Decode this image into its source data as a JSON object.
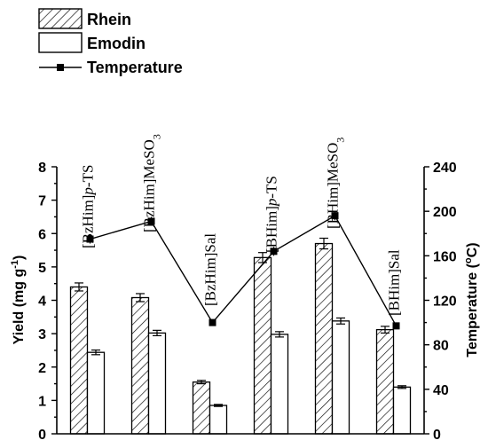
{
  "chart_data": {
    "type": "bar",
    "categories": [
      "[BzHim]p-TS",
      "[BzHim]MeSO3",
      "[BzHim]Sal",
      "[BHim]p-TS",
      "[BHim]MeSO3",
      "[BHim]Sal"
    ],
    "category_labels": [
      {
        "pre": "[BzHim]",
        "ital": "p",
        "post": "-TS",
        "sub": ""
      },
      {
        "pre": "[BzHim]MeSO",
        "ital": "",
        "post": "",
        "sub": "3"
      },
      {
        "pre": "[BzHim]Sal",
        "ital": "",
        "post": "",
        "sub": ""
      },
      {
        "pre": "[BHim]",
        "ital": "p",
        "post": "-TS",
        "sub": ""
      },
      {
        "pre": "[BHim]MeSO",
        "ital": "",
        "post": "",
        "sub": "3"
      },
      {
        "pre": "[BHim]Sal",
        "ital": "",
        "post": "",
        "sub": ""
      }
    ],
    "series": [
      {
        "name": "Rhein",
        "kind": "bar",
        "pattern": "hatch",
        "values": [
          4.4,
          4.08,
          1.55,
          5.28,
          5.7,
          3.12
        ],
        "errors": [
          0.12,
          0.12,
          0.05,
          0.15,
          0.16,
          0.1
        ]
      },
      {
        "name": "Emodin",
        "kind": "bar",
        "pattern": "none",
        "values": [
          2.44,
          3.02,
          0.85,
          2.98,
          3.38,
          1.4
        ],
        "errors": [
          0.07,
          0.08,
          0.03,
          0.08,
          0.09,
          0.04
        ]
      },
      {
        "name": "Temperature",
        "kind": "line",
        "axis": "right",
        "values": [
          175,
          191,
          100,
          164,
          196,
          97
        ],
        "errors": [
          4,
          4,
          2,
          4,
          4,
          2
        ]
      }
    ],
    "ylabel": "Yield (mg g-1)",
    "y2label": "Temperature (oC)",
    "ylim": [
      0,
      8
    ],
    "yticks": [
      0,
      1,
      2,
      3,
      4,
      5,
      6,
      7,
      8
    ],
    "y2lim": [
      0,
      240
    ],
    "y2ticks": [
      0,
      40,
      80,
      120,
      160,
      200,
      240
    ],
    "legend_position": "top-left"
  },
  "colors": {
    "axis": "#000000",
    "bar_fill": "#ffffff",
    "line": "#000000"
  }
}
